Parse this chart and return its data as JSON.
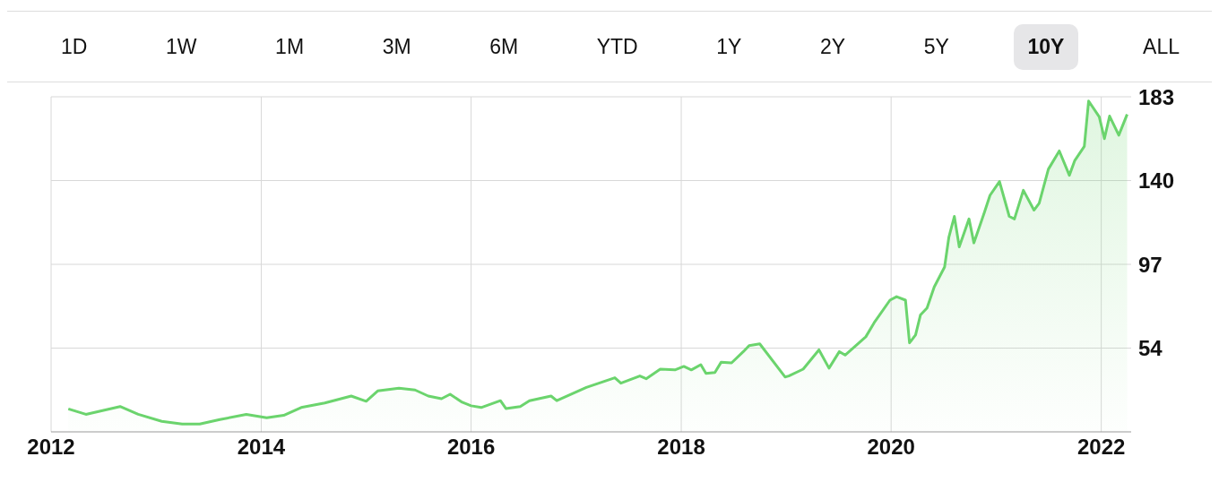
{
  "chart_data": {
    "type": "area",
    "annotations": [
      "1D",
      "1W",
      "1M",
      "3M",
      "6M",
      "YTD",
      "1Y",
      "2Y",
      "5Y",
      "10Y",
      "ALL"
    ],
    "x": [
      "2012-03-01",
      "2012-05-01",
      "2012-08-28",
      "2012-10-30",
      "2013-01-20",
      "2013-04-01",
      "2013-06-01",
      "2013-08-10",
      "2013-11-10",
      "2014-01-20",
      "2014-03-20",
      "2014-05-20",
      "2014-08-10",
      "2014-11-10",
      "2015-01-01",
      "2015-02-10",
      "2015-04-25",
      "2015-06-20",
      "2015-08-05",
      "2015-09-20",
      "2015-10-20",
      "2015-12-01",
      "2016-01-01",
      "2016-02-05",
      "2016-04-12",
      "2016-05-01",
      "2016-06-20",
      "2016-07-22",
      "2016-10-05",
      "2016-10-25",
      "2017-02-05",
      "2017-05-15",
      "2017-06-05",
      "2017-08-10",
      "2017-09-01",
      "2017-10-20",
      "2017-12-10",
      "2018-01-10",
      "2018-02-05",
      "2018-03-10",
      "2018-03-28",
      "2018-04-28",
      "2018-05-20",
      "2018-06-25",
      "2018-08-05",
      "2018-08-25",
      "2018-10-01",
      "2018-12-28",
      "2019-01-10",
      "2019-03-01",
      "2019-04-25",
      "2019-05-30",
      "2019-07-05",
      "2019-07-25",
      "2019-10-05",
      "2019-11-03",
      "2019-12-28",
      "2020-01-20",
      "2020-02-20",
      "2020-03-05",
      "2020-03-26",
      "2020-04-12",
      "2020-05-05",
      "2020-05-30",
      "2020-07-05",
      "2020-07-20",
      "2020-08-08",
      "2020-08-25",
      "2020-09-28",
      "2020-10-15",
      "2020-11-20",
      "2020-12-10",
      "2021-01-12",
      "2021-02-15",
      "2021-03-05",
      "2021-04-05",
      "2021-05-12",
      "2021-05-30",
      "2021-07-01",
      "2021-08-08",
      "2021-09-12",
      "2021-10-01",
      "2021-11-03",
      "2021-11-18",
      "2021-12-25",
      "2022-01-12",
      "2022-01-30",
      "2022-03-03",
      "2022-04-01"
    ],
    "series": [
      {
        "color": "#6bd46d",
        "values": [
          22.8,
          20,
          24,
          20,
          16.4,
          15,
          15,
          17.3,
          20,
          18.2,
          19.5,
          23.5,
          25.8,
          29.4,
          26.7,
          32,
          33.4,
          32.5,
          29.4,
          28,
          30.3,
          26.2,
          24.4,
          23.5,
          27,
          23,
          24,
          27,
          29.4,
          27,
          33.8,
          38.8,
          36,
          39.7,
          38.3,
          43.2,
          42.8,
          44.6,
          42.8,
          45.5,
          41,
          41.5,
          46.8,
          46.4,
          52.2,
          55.3,
          56.2,
          39.2,
          39.7,
          43.2,
          53.1,
          43.7,
          52.2,
          50.4,
          59.8,
          67,
          78.6,
          80.4,
          78.6,
          56.7,
          60.7,
          71,
          74.6,
          85.4,
          95.6,
          111,
          121.6,
          106,
          120.3,
          108,
          123.4,
          132.4,
          139.5,
          121.6,
          120.3,
          135,
          124.8,
          128.3,
          145.8,
          155.2,
          142.7,
          150.3,
          157.5,
          180.8,
          172.7,
          161.5,
          173.1,
          163.3,
          174
        ]
      }
    ],
    "xlim": [
      "2012-01-01",
      "2022-04-15"
    ],
    "xticks": [
      "2012",
      "2014",
      "2016",
      "2018",
      "2020",
      "2022"
    ],
    "ylim": [
      11,
      183
    ],
    "yticks": [
      54,
      97,
      140,
      183
    ],
    "grid": true
  }
}
